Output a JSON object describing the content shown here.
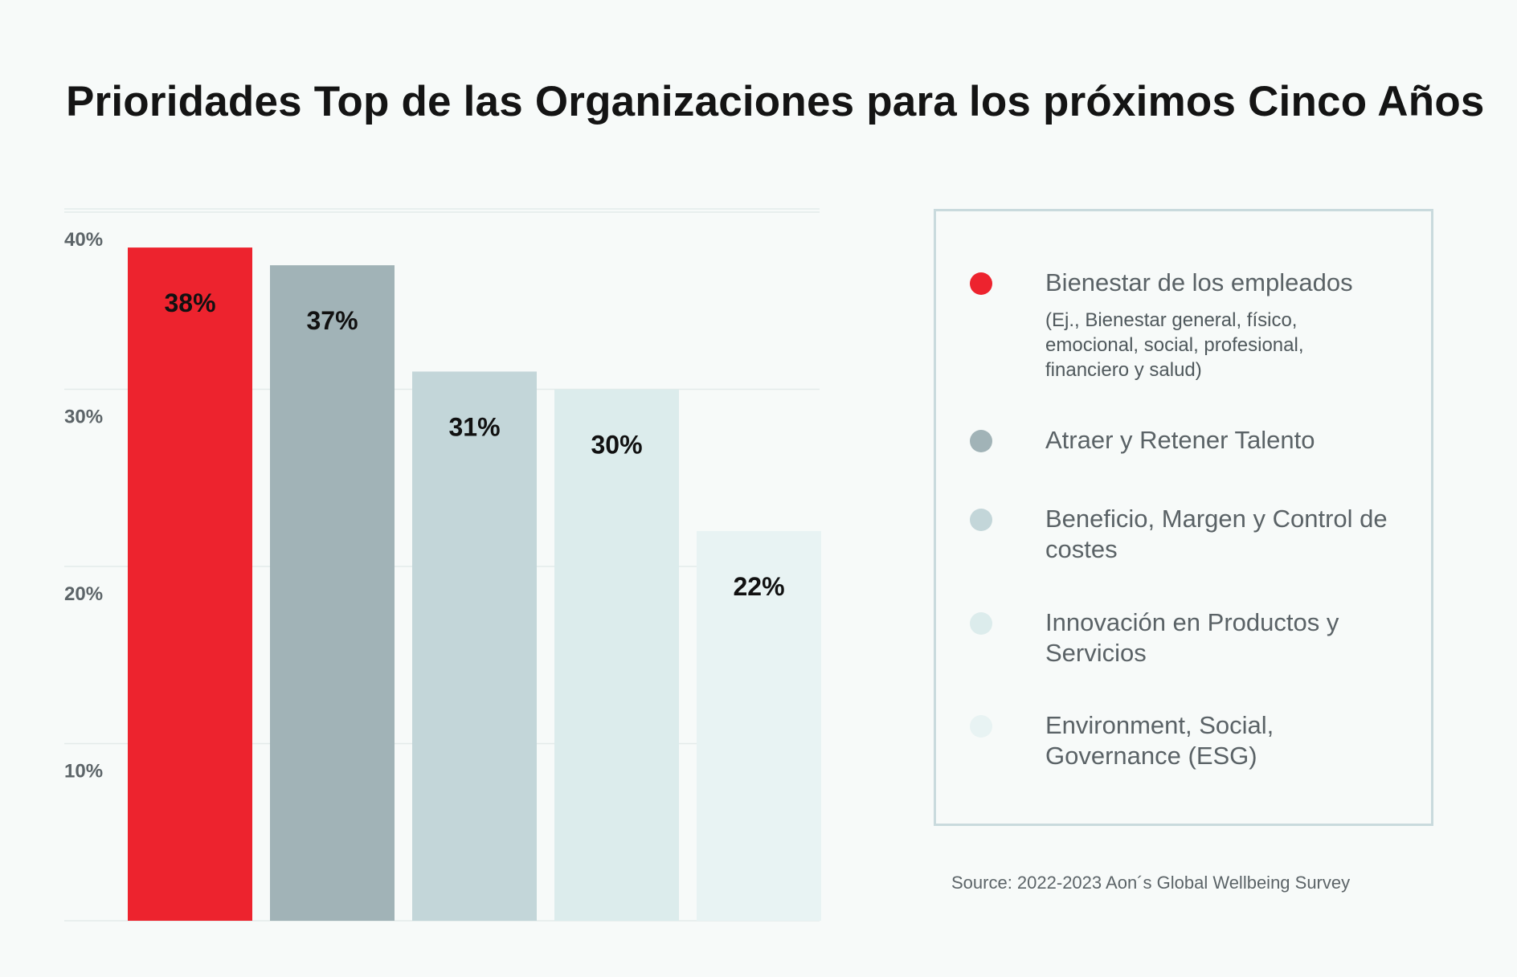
{
  "title": "Prioridades Top de las Organizaciones para los próximos Cinco Años",
  "source": "Source: 2022-2023 Aon´s Global Wellbeing Survey",
  "chart_data": {
    "type": "bar",
    "title": "Prioridades Top de las Organizaciones para los próximos Cinco Años",
    "xlabel": "",
    "ylabel": "",
    "ylim": [
      0,
      40
    ],
    "grid": true,
    "yticks": [
      {
        "value": 10,
        "label": "10%"
      },
      {
        "value": 20,
        "label": "20%"
      },
      {
        "value": 30,
        "label": "30%"
      },
      {
        "value": 40,
        "label": "40%"
      }
    ],
    "categories": [
      "Bienestar de los empleados",
      "Atraer y Retener Talento",
      "Beneficio, Margen y Control de costes",
      "Innovación en Productos y Servicios",
      "Environment, Social, Governance (ESG)"
    ],
    "values": [
      38,
      37,
      31,
      30,
      22
    ],
    "data_labels": [
      "38%",
      "37%",
      "31%",
      "30%",
      "22%"
    ],
    "colors": [
      "#ed232e",
      "#a1b3b7",
      "#c3d6d9",
      "#dcecec",
      "#e8f3f3"
    ],
    "legend_position": "right"
  },
  "legend": {
    "items": [
      {
        "label": "Bienestar de los empleados",
        "desc": "(Ej., Bienestar general, físico, emocional, social, profesional, financiero y salud)",
        "color": "#ed232e"
      },
      {
        "label": "Atraer y Retener Talento",
        "desc": "",
        "color": "#a1b3b7"
      },
      {
        "label": "Beneficio, Margen y Control de costes",
        "desc": "",
        "color": "#c3d6d9"
      },
      {
        "label": "Innovación en Productos y Servicios",
        "desc": "",
        "color": "#dcecec"
      },
      {
        "label": "Environment, Social, Governance (ESG)",
        "desc": "",
        "color": "#e8f3f3"
      }
    ]
  }
}
